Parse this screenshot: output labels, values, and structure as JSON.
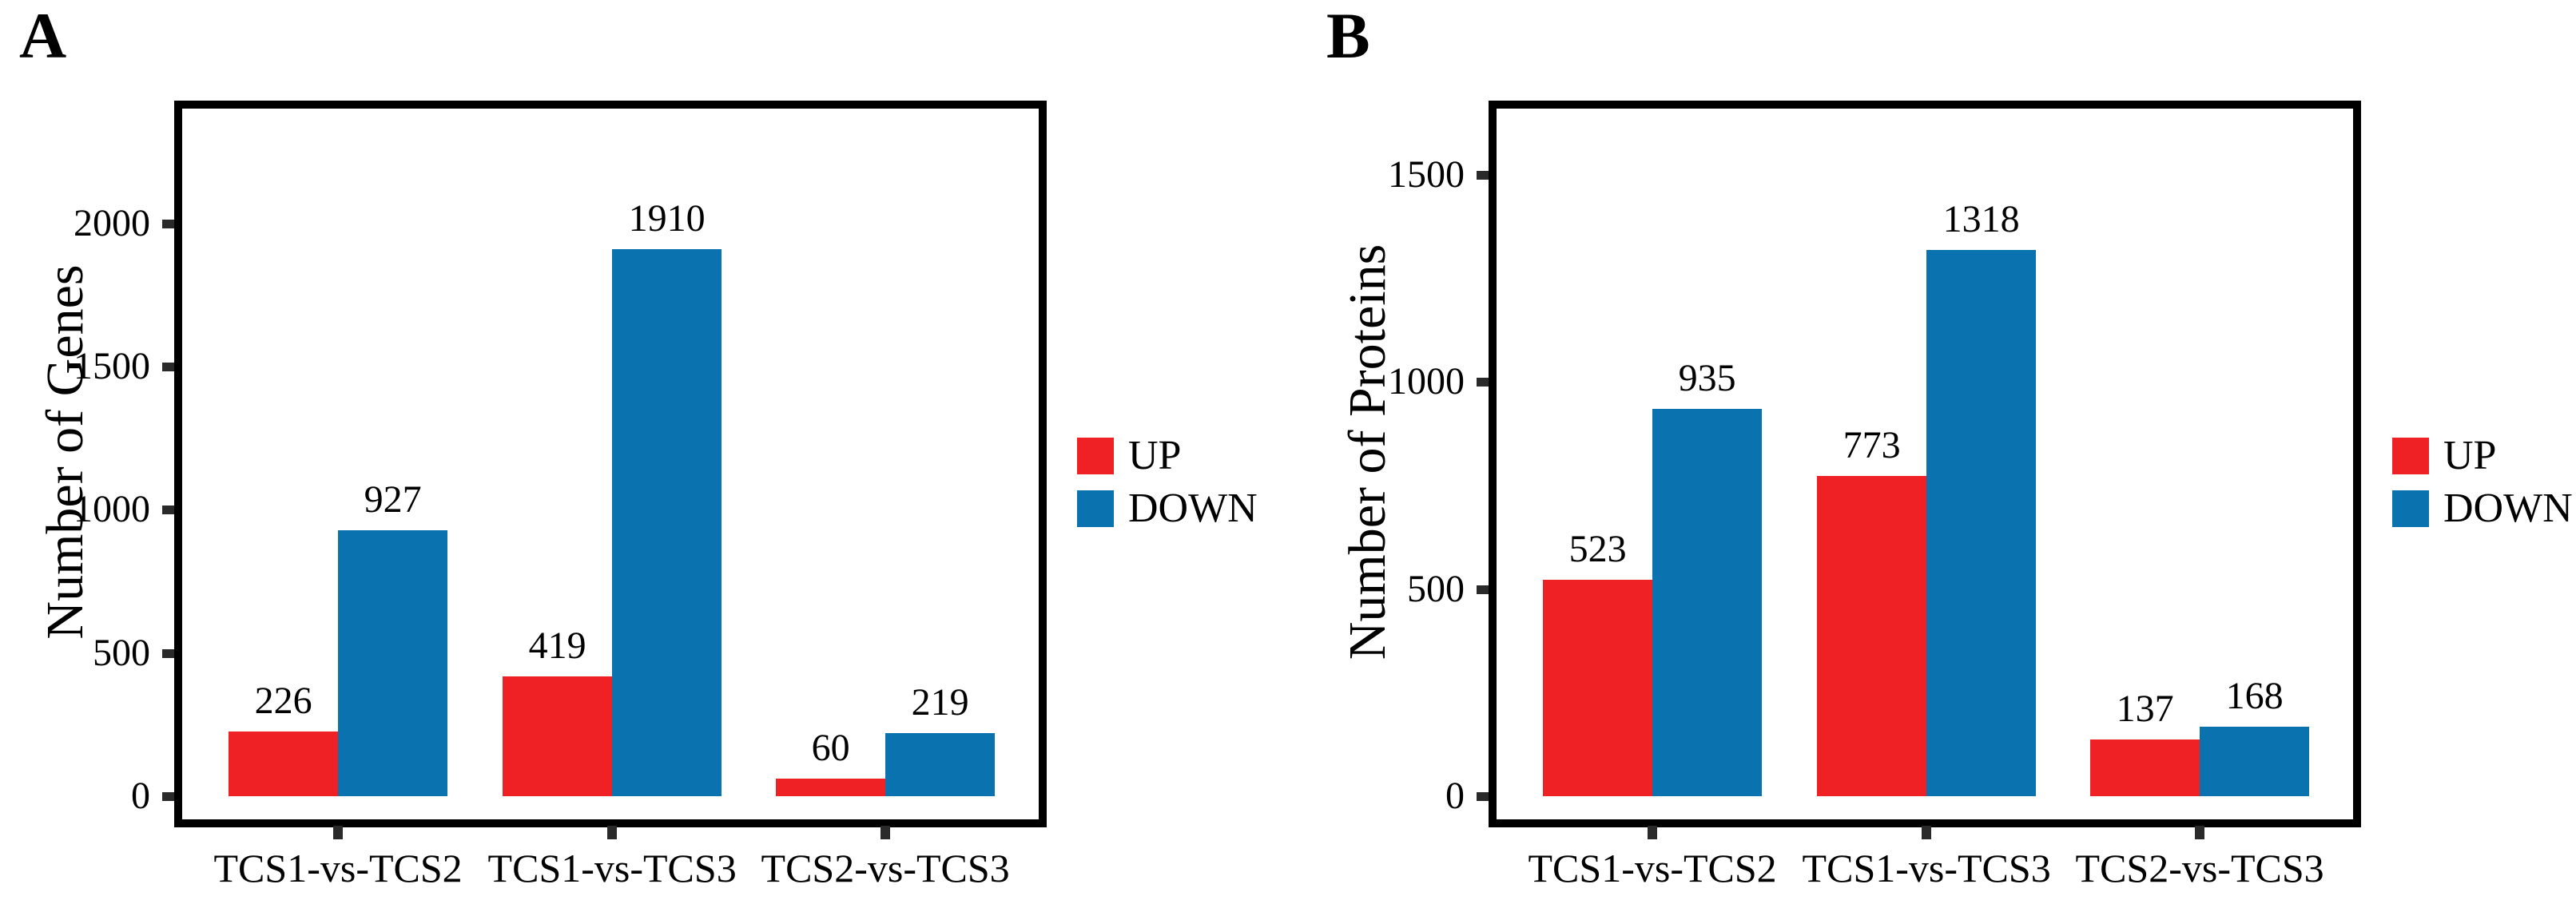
{
  "colors": {
    "up": "#F02125",
    "down": "#0A73AF",
    "axis": "#000000",
    "background": "#FFFFFF"
  },
  "chart_data": [
    {
      "type": "bar",
      "panel_label": "A",
      "title": "",
      "ylabel": "Number of Genes",
      "xlabel": "",
      "categories": [
        "TCS1-vs-TCS2",
        "TCS1-vs-TCS3",
        "TCS2-vs-TCS3"
      ],
      "series": [
        {
          "name": "UP",
          "color": "#F02125",
          "values": [
            226,
            419,
            60
          ]
        },
        {
          "name": "DOWN",
          "color": "#0A73AF",
          "values": [
            927,
            1910,
            219
          ]
        }
      ],
      "yticks": [
        0,
        500,
        1000,
        1500,
        2000
      ],
      "ylim": [
        0,
        2400
      ],
      "grid": false,
      "legend_position": "right"
    },
    {
      "type": "bar",
      "panel_label": "B",
      "title": "",
      "ylabel": "Number of Proteins",
      "xlabel": "",
      "categories": [
        "TCS1-vs-TCS2",
        "TCS1-vs-TCS3",
        "TCS2-vs-TCS3"
      ],
      "series": [
        {
          "name": "UP",
          "color": "#F02125",
          "values": [
            523,
            773,
            137
          ]
        },
        {
          "name": "DOWN",
          "color": "#0A73AF",
          "values": [
            935,
            1318,
            168
          ]
        }
      ],
      "yticks": [
        0,
        500,
        1000,
        1500
      ],
      "ylim": [
        0,
        1660
      ],
      "grid": false,
      "legend_position": "right"
    }
  ]
}
